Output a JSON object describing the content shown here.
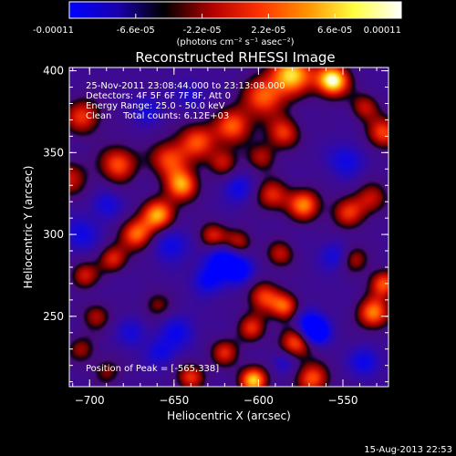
{
  "colorbar": {
    "tick_labels": [
      "-0.00011",
      "-6.6e-05",
      "-2.2e-05",
      "2.2e-05",
      "6.6e-05",
      "0.00011"
    ],
    "tick_values": [
      -0.00011,
      -6.6e-05,
      -2.2e-05,
      2.2e-05,
      6.6e-05,
      0.00011
    ],
    "range": [
      -0.00011,
      0.00011
    ],
    "units_label": "(photons cm⁻² s⁻¹ asec⁻²)",
    "colors": [
      "#0000ff",
      "#1a00b0",
      "#000000",
      "#b00000",
      "#ff3000",
      "#ff9000",
      "#ffff40",
      "#ffffff"
    ]
  },
  "chart_data": {
    "type": "heatmap",
    "title": "Reconstructed RHESSI Image",
    "xlabel": "Heliocentric X (arcsec)",
    "ylabel": "Heliocentric Y (arcsec)",
    "xlim": [
      -712,
      -523
    ],
    "ylim": [
      207,
      402
    ],
    "x_ticks": [
      -700,
      -650,
      -600,
      -550
    ],
    "y_ticks": [
      250,
      300,
      350,
      400
    ],
    "x_tick_labels": [
      "−700",
      "−650",
      "−600",
      "−550"
    ],
    "y_tick_labels": [
      "250",
      "300",
      "350",
      "400"
    ],
    "value_range": [
      -0.00011,
      0.00011
    ],
    "peak": {
      "x": -565,
      "y": 338
    },
    "sources": [
      {
        "x": -580,
        "y": 398,
        "amp": 1.15,
        "s": 9
      },
      {
        "x": -556,
        "y": 394,
        "amp": 1.35,
        "s": 7
      },
      {
        "x": -597,
        "y": 384,
        "amp": 0.85,
        "s": 9
      },
      {
        "x": -615,
        "y": 366,
        "amp": 0.85,
        "s": 8
      },
      {
        "x": -636,
        "y": 357,
        "amp": 0.8,
        "s": 8
      },
      {
        "x": -653,
        "y": 346,
        "amp": 0.8,
        "s": 8
      },
      {
        "x": -683,
        "y": 343,
        "amp": 0.85,
        "s": 8
      },
      {
        "x": -704,
        "y": 372,
        "amp": 0.75,
        "s": 8
      },
      {
        "x": -712,
        "y": 334,
        "amp": 0.6,
        "s": 8
      },
      {
        "x": -621,
        "y": 344,
        "amp": 0.6,
        "s": 6
      },
      {
        "x": -598,
        "y": 347,
        "amp": 0.55,
        "s": 6
      },
      {
        "x": -585,
        "y": 362,
        "amp": 0.75,
        "s": 7
      },
      {
        "x": -592,
        "y": 324,
        "amp": 0.7,
        "s": 7
      },
      {
        "x": -573,
        "y": 318,
        "amp": 0.95,
        "s": 7
      },
      {
        "x": -547,
        "y": 313,
        "amp": 0.7,
        "s": 7
      },
      {
        "x": -533,
        "y": 322,
        "amp": 0.6,
        "s": 7
      },
      {
        "x": -526,
        "y": 362,
        "amp": 0.8,
        "s": 7
      },
      {
        "x": -537,
        "y": 378,
        "amp": 0.6,
        "s": 6
      },
      {
        "x": -645,
        "y": 330,
        "amp": 1.0,
        "s": 7
      },
      {
        "x": -659,
        "y": 312,
        "amp": 1.05,
        "s": 7
      },
      {
        "x": -672,
        "y": 300,
        "amp": 0.9,
        "s": 7
      },
      {
        "x": -686,
        "y": 285,
        "amp": 0.7,
        "s": 6
      },
      {
        "x": -703,
        "y": 275,
        "amp": 0.65,
        "s": 6
      },
      {
        "x": -696,
        "y": 250,
        "amp": 0.55,
        "s": 6
      },
      {
        "x": -627,
        "y": 299,
        "amp": 0.7,
        "s": 6
      },
      {
        "x": -612,
        "y": 295,
        "amp": 0.65,
        "s": 6
      },
      {
        "x": -587,
        "y": 288,
        "amp": 0.6,
        "s": 6
      },
      {
        "x": -597,
        "y": 262,
        "amp": 0.75,
        "s": 7
      },
      {
        "x": -604,
        "y": 243,
        "amp": 0.7,
        "s": 6
      },
      {
        "x": -584,
        "y": 256,
        "amp": 0.8,
        "s": 6
      },
      {
        "x": -578,
        "y": 234,
        "amp": 0.85,
        "s": 7
      },
      {
        "x": -620,
        "y": 228,
        "amp": 0.7,
        "s": 6
      },
      {
        "x": -640,
        "y": 213,
        "amp": 0.75,
        "s": 6
      },
      {
        "x": -568,
        "y": 212,
        "amp": 0.85,
        "s": 7
      },
      {
        "x": -603,
        "y": 211,
        "amp": 1.15,
        "s": 6
      },
      {
        "x": -532,
        "y": 252,
        "amp": 0.95,
        "s": 7
      },
      {
        "x": -526,
        "y": 270,
        "amp": 0.85,
        "s": 6
      },
      {
        "x": -543,
        "y": 285,
        "amp": 0.55,
        "s": 6
      },
      {
        "x": -690,
        "y": 216,
        "amp": 0.45,
        "s": 6
      },
      {
        "x": -705,
        "y": 230,
        "amp": 0.5,
        "s": 6
      },
      {
        "x": -660,
        "y": 257,
        "amp": 0.45,
        "s": 6
      },
      {
        "x": -621,
        "y": 284,
        "amp": -0.85,
        "s": 7
      },
      {
        "x": -611,
        "y": 278,
        "amp": -0.75,
        "s": 6
      },
      {
        "x": -630,
        "y": 272,
        "amp": -0.6,
        "s": 6
      },
      {
        "x": -570,
        "y": 245,
        "amp": -0.8,
        "s": 6
      },
      {
        "x": -565,
        "y": 240,
        "amp": -0.9,
        "s": 5
      },
      {
        "x": -652,
        "y": 294,
        "amp": -0.55,
        "s": 7
      },
      {
        "x": -648,
        "y": 240,
        "amp": -0.5,
        "s": 7
      },
      {
        "x": -658,
        "y": 228,
        "amp": -0.45,
        "s": 6
      },
      {
        "x": -690,
        "y": 318,
        "amp": -0.45,
        "s": 6
      },
      {
        "x": -705,
        "y": 300,
        "amp": -0.5,
        "s": 7
      },
      {
        "x": -612,
        "y": 328,
        "amp": -0.5,
        "s": 6
      },
      {
        "x": -548,
        "y": 345,
        "amp": -0.5,
        "s": 7
      },
      {
        "x": -555,
        "y": 287,
        "amp": -0.45,
        "s": 6
      },
      {
        "x": -537,
        "y": 222,
        "amp": -0.55,
        "s": 6
      },
      {
        "x": -585,
        "y": 222,
        "amp": -0.4,
        "s": 5
      },
      {
        "x": -675,
        "y": 240,
        "amp": -0.4,
        "s": 6
      },
      {
        "x": -640,
        "y": 385,
        "amp": -0.35,
        "s": 6
      },
      {
        "x": -666,
        "y": 376,
        "amp": -0.4,
        "s": 6
      }
    ]
  },
  "annotations": {
    "time_range": "25-Nov-2011 23:08:44.000 to 23:13:08.000",
    "detectors": "Detectors: 4F 5F 6F 7F 8F, Att 0",
    "energy": "Energy Range: 25.0 - 50.0 keV",
    "clean": "Clean    Total counts: 6.12E+03",
    "peak_label": "Position of Peak = [-565,338]"
  },
  "footer": {
    "timestamp": "15-Aug-2013 22:53"
  }
}
